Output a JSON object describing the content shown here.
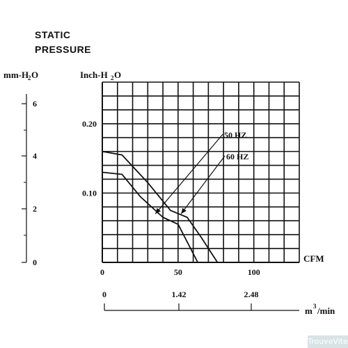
{
  "title": {
    "line1": "STATIC",
    "line2": "PRESSURE"
  },
  "watermark": "TrouveVite",
  "chart_data": {
    "type": "line",
    "title": "STATIC PRESSURE",
    "left_axis": {
      "label": "mm-H2O",
      "ticks": [
        "0",
        "2",
        "4",
        "6"
      ]
    },
    "y_axis": {
      "label": "Inch-H2O",
      "ticks": [
        "0.10",
        "0.20"
      ],
      "range": [
        0,
        0.26
      ]
    },
    "x_axis": {
      "label": "CFM",
      "ticks": [
        "0",
        "50",
        "100"
      ],
      "range": [
        0,
        130
      ]
    },
    "bottom_axis": {
      "label_main": "m",
      "label_sup": "3",
      "label_rest": "/min",
      "ticks": [
        "0",
        "1.42",
        "2.48"
      ]
    },
    "grid": true,
    "series": [
      {
        "name": "50 HZ",
        "x": [
          0,
          13,
          25,
          40,
          50,
          63
        ],
        "y": [
          0.13,
          0.127,
          0.095,
          0.065,
          0.055,
          0.0
        ]
      },
      {
        "name": "60 HZ",
        "x": [
          0,
          13,
          30,
          45,
          56,
          65,
          76
        ],
        "y": [
          0.16,
          0.155,
          0.115,
          0.075,
          0.065,
          0.037,
          0.0
        ]
      }
    ],
    "annotations": [
      {
        "text": "50 HZ",
        "points_to": {
          "x": 35,
          "y": 0.07
        }
      },
      {
        "text": "60 HZ",
        "points_to": {
          "x": 52,
          "y": 0.07
        }
      }
    ]
  }
}
